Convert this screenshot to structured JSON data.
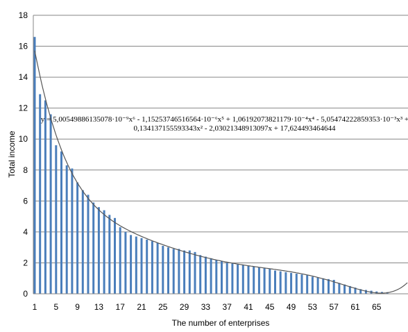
{
  "chart_data": {
    "type": "bar",
    "title": "",
    "xlabel": "The number of enterprises",
    "ylabel": "Total income",
    "ylim": [
      0,
      18
    ],
    "yticks": [
      "0",
      "2",
      "4",
      "6",
      "8",
      "10",
      "12",
      "14",
      "16",
      "18"
    ],
    "grid": true,
    "x": [
      1,
      2,
      3,
      4,
      5,
      6,
      7,
      8,
      9,
      10,
      11,
      12,
      13,
      14,
      15,
      16,
      17,
      18,
      19,
      20,
      21,
      22,
      23,
      24,
      25,
      26,
      27,
      28,
      29,
      30,
      31,
      32,
      33,
      34,
      35,
      36,
      37,
      38,
      39,
      40,
      41,
      42,
      43,
      44,
      45,
      46,
      47,
      48,
      49,
      50,
      51,
      52,
      53,
      54,
      55,
      56,
      57,
      58,
      59,
      60,
      61,
      62,
      63,
      64,
      65,
      66,
      67
    ],
    "xtick_labels": [
      "1",
      "5",
      "9",
      "13",
      "17",
      "21",
      "25",
      "29",
      "33",
      "37",
      "41",
      "45",
      "49",
      "53",
      "57",
      "61",
      "65"
    ],
    "values": [
      16.6,
      12.9,
      12.5,
      11.6,
      9.6,
      9.2,
      8.3,
      8.1,
      7.2,
      6.7,
      6.4,
      5.9,
      5.6,
      5.4,
      5.1,
      4.9,
      4.3,
      4.0,
      3.8,
      3.7,
      3.6,
      3.5,
      3.4,
      3.3,
      3.1,
      3.0,
      2.9,
      2.9,
      2.8,
      2.8,
      2.7,
      2.5,
      2.4,
      2.3,
      2.2,
      2.1,
      2.0,
      1.95,
      1.9,
      1.85,
      1.8,
      1.75,
      1.7,
      1.65,
      1.6,
      1.5,
      1.45,
      1.4,
      1.35,
      1.3,
      1.25,
      1.2,
      1.1,
      1.05,
      1.0,
      0.95,
      0.9,
      0.7,
      0.6,
      0.5,
      0.4,
      0.3,
      0.25,
      0.2,
      0.15,
      0.12,
      0.1
    ],
    "trendline": {
      "type": "polynomial",
      "order": 6,
      "coefficients": [
        5.00549886135078e-09,
        -1.15253746516564e-06,
        0.000106192073821179,
        -0.00505474222859353,
        0.134137155593343,
        -2.03021348913097,
        17.624493464644
      ],
      "equation_line1": "y = 5,00549886135078·10⁻⁹x⁶ - 1,15253746516564·10⁻⁶x⁵ + 1,06192073821179·10⁻⁴x⁴ - 5,05474222859353·10⁻³x³ +",
      "equation_line2": "0,134137155593343x² - 2,03021348913097x + 17,624493464644"
    },
    "bar_color": "#4a7ebb",
    "trendline_color": "#555555"
  }
}
